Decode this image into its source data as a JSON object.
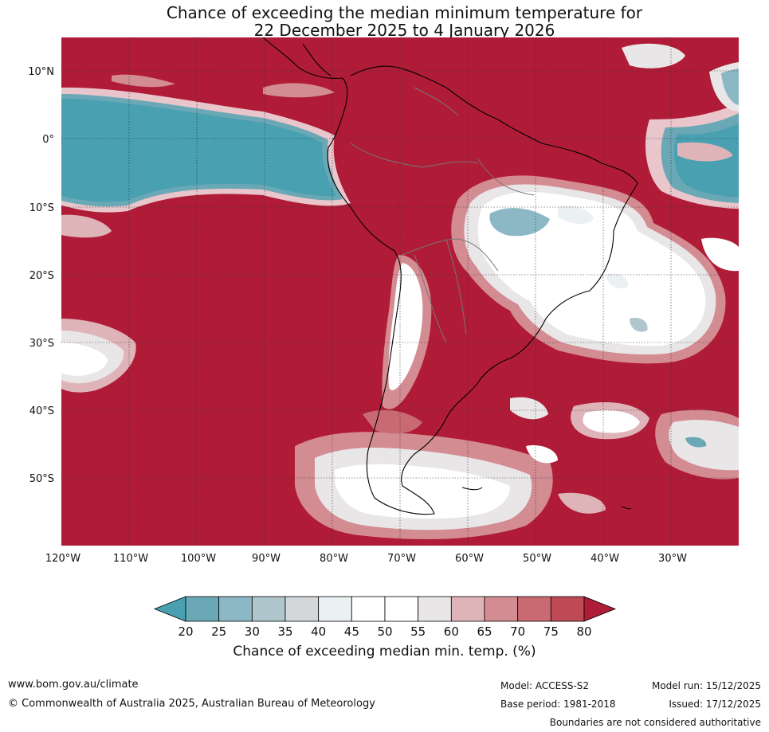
{
  "title": {
    "line1": "Chance of exceeding the median minimum temperature for",
    "line2": "22 December 2025 to 4 January 2026"
  },
  "map": {
    "lat_labels": [
      "10°N",
      "0°",
      "10°S",
      "20°S",
      "30°S",
      "40°S",
      "50°S"
    ],
    "lon_labels": [
      "120°W",
      "110°W",
      "100°W",
      "90°W",
      "80°W",
      "70°W",
      "60°W",
      "50°W",
      "40°W",
      "30°W"
    ],
    "lat_range": [
      -60,
      15
    ],
    "lon_range": [
      -120,
      -20
    ]
  },
  "colorbar": {
    "ticks": [
      "20",
      "25",
      "30",
      "35",
      "40",
      "45",
      "50",
      "55",
      "60",
      "65",
      "70",
      "75",
      "80"
    ],
    "colors": [
      "#48a0b1",
      "#6ba8b6",
      "#8bb8c4",
      "#aec6cc",
      "#d3d7da",
      "#ebf0f2",
      "#ffffff",
      "#ffffff",
      "#e9e6e7",
      "#dfb4b9",
      "#d48c93",
      "#c96a73",
      "#bd4a55",
      "#b01c37"
    ],
    "title": "Chance of exceeding median min. temp. (%)"
  },
  "footer": {
    "website": "www.bom.gov.au/climate",
    "copyright": "© Commonwealth of Australia 2025, Australian Bureau of Meteorology",
    "model": "Model: ACCESS-S2",
    "base_period": "Base period: 1981-2018",
    "model_run": "Model run: 15/12/2025",
    "issued": "Issued: 17/12/2025",
    "disclaimer": "Boundaries are not considered authoritative"
  }
}
